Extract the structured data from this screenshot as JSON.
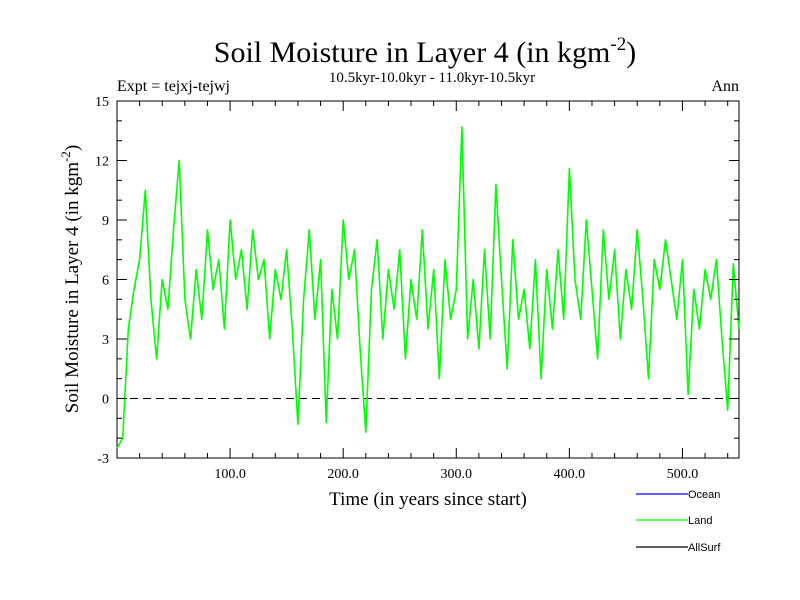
{
  "chart_data": {
    "type": "line",
    "title": "Soil Moisture in Layer 4 (in kgm",
    "title_sup": "-2",
    "title_close": ")",
    "subtitle": "10.5kyr-10.0kyr - 11.0kyr-10.5kyr",
    "expt_label": "Expt = tejxj-tejwj",
    "season": "Ann",
    "xlabel": "Time (in years since start)",
    "ylabel": "Soil Moisture in Layer 4 (in kgm",
    "ylabel_sup": "-2",
    "ylabel_close": ")",
    "xlim": [
      0,
      550
    ],
    "ylim": [
      -3,
      15
    ],
    "x_ticks": [
      "100.0",
      "200.0",
      "300.0",
      "400.0",
      "500.0"
    ],
    "x_tick_values": [
      100,
      200,
      300,
      400,
      500
    ],
    "y_ticks": [
      "-3",
      "0",
      "3",
      "6",
      "9",
      "12",
      "15"
    ],
    "y_tick_values": [
      -3,
      0,
      3,
      6,
      9,
      12,
      15
    ],
    "zero_line": true,
    "legend": [
      {
        "name": "Ocean",
        "color": "#0000ff"
      },
      {
        "name": "Land",
        "color": "#00ff00"
      },
      {
        "name": "AllSurf",
        "color": "#000000"
      }
    ],
    "series": [
      {
        "name": "Land",
        "color": "#00ff00",
        "x": [
          0,
          5,
          10,
          15,
          20,
          25,
          30,
          35,
          40,
          45,
          50,
          55,
          60,
          65,
          70,
          75,
          80,
          85,
          90,
          95,
          100,
          105,
          110,
          115,
          120,
          125,
          130,
          135,
          140,
          145,
          150,
          155,
          160,
          165,
          170,
          175,
          180,
          185,
          190,
          195,
          200,
          205,
          210,
          215,
          220,
          225,
          230,
          235,
          240,
          245,
          250,
          255,
          260,
          265,
          270,
          275,
          280,
          285,
          290,
          295,
          300,
          305,
          310,
          315,
          320,
          325,
          330,
          335,
          340,
          345,
          350,
          355,
          360,
          365,
          370,
          375,
          380,
          385,
          390,
          395,
          400,
          405,
          410,
          415,
          420,
          425,
          430,
          435,
          440,
          445,
          450,
          455,
          460,
          465,
          470,
          475,
          480,
          485,
          490,
          495,
          500,
          505,
          510,
          515,
          520,
          525,
          530,
          535,
          540,
          545,
          550
        ],
        "values": [
          -2.5,
          -2.0,
          3.5,
          5.5,
          7.0,
          10.5,
          5.0,
          2.0,
          6.0,
          4.5,
          8.5,
          12.0,
          5.0,
          3.0,
          6.5,
          4.0,
          8.5,
          5.5,
          7.0,
          3.5,
          9.0,
          6.0,
          7.5,
          4.5,
          8.5,
          6.0,
          7.0,
          3.0,
          6.5,
          5.0,
          7.5,
          3.5,
          -1.3,
          5.0,
          8.5,
          4.0,
          7.0,
          -1.2,
          5.5,
          3.0,
          9.0,
          6.0,
          7.5,
          2.5,
          -1.7,
          5.5,
          8.0,
          3.0,
          6.5,
          4.5,
          7.5,
          2.0,
          6.0,
          4.0,
          8.5,
          3.5,
          6.5,
          1.0,
          7.0,
          4.0,
          5.5,
          13.7,
          3.0,
          6.0,
          2.5,
          7.5,
          3.0,
          10.8,
          6.0,
          1.5,
          8.0,
          4.0,
          5.5,
          2.5,
          7.0,
          1.0,
          6.5,
          3.5,
          7.5,
          4.0,
          11.6,
          6.0,
          4.0,
          9.0,
          5.5,
          2.0,
          8.5,
          5.0,
          7.5,
          3.0,
          6.5,
          4.5,
          8.5,
          5.0,
          1.0,
          7.0,
          5.5,
          8.0,
          6.0,
          4.0,
          7.0,
          0.2,
          5.5,
          3.5,
          6.5,
          5.0,
          7.0,
          3.0,
          -0.6,
          6.8,
          3.5
        ]
      }
    ]
  }
}
